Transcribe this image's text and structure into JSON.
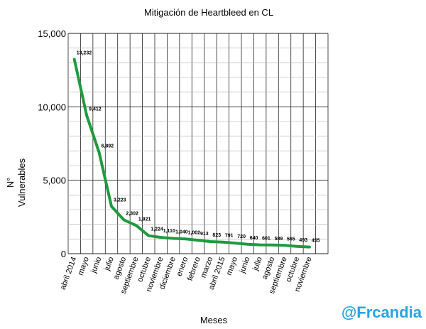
{
  "chart_data": {
    "type": "line",
    "title": "Mitigación de Heartbleed en CL",
    "xlabel": "Meses",
    "ylabel_lines": [
      "N°",
      "Vulnerables"
    ],
    "categories": [
      "abril 2014",
      "mayo",
      "junio",
      "julio",
      "agosto",
      "septiembre",
      "octubre",
      "noviembre",
      "diciembre",
      "enero",
      "febrero",
      "marzo",
      "abril 2015",
      "mayo",
      "junio",
      "julio",
      "agosto",
      "septiembre",
      "octubre",
      "noviembre"
    ],
    "series": [
      {
        "values": [
          13232,
          9412,
          6892,
          3223,
          2302,
          1921,
          1224,
          1110,
          1040,
          1002,
          913,
          823,
          791,
          720,
          640,
          601,
          589,
          565,
          493,
          455
        ],
        "labels": [
          "13,232",
          "9,412",
          "6,892",
          "3,223",
          "2,302",
          "1,921",
          "1,224",
          "1,110",
          "1,040",
          "1,002",
          "913",
          "823",
          "791",
          "720",
          "640",
          "601",
          "589",
          "565",
          "493",
          "455"
        ],
        "color": "#1f9a3e"
      }
    ],
    "yticks": [
      "0",
      "5,000",
      "10,000",
      "15,000"
    ],
    "ylim": [
      0,
      15000
    ],
    "grid": true
  },
  "watermark": "@Frcandia"
}
